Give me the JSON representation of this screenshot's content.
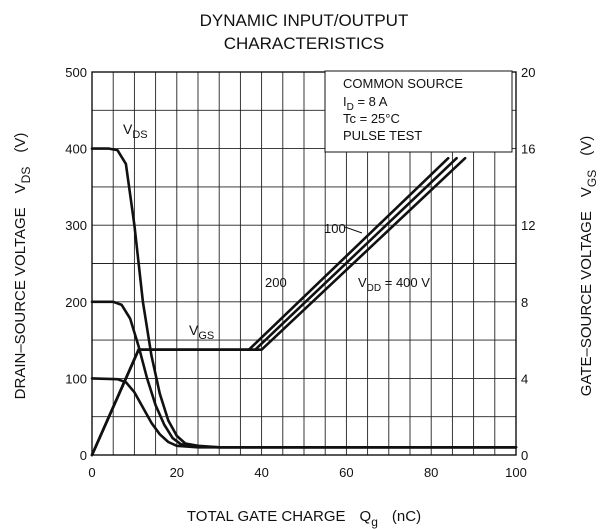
{
  "chart_data": {
    "type": "line",
    "title": "DYNAMIC INPUT/OUTPUT",
    "subtitle": "CHARACTERISTICS",
    "xlabel": {
      "main": "TOTAL GATE CHARGE",
      "sym": "Q",
      "sub": "g",
      "unit": "(nC)"
    },
    "ylabel_left": {
      "main": "DRAIN–SOURCE VOLTAGE",
      "sym": "V",
      "sub": "DS",
      "unit": "(V)"
    },
    "ylabel_right": {
      "main": "GATE–SOURCE VOLTAGE",
      "sym": "V",
      "sub": "GS",
      "unit": "(V)"
    },
    "xlim": [
      0,
      100
    ],
    "ylim_left": [
      0,
      500
    ],
    "ylim_right": [
      0,
      20
    ],
    "x_ticks": [
      "0",
      "20",
      "40",
      "60",
      "80",
      "100"
    ],
    "y_ticks_left": [
      "0",
      "100",
      "200",
      "300",
      "400",
      "500"
    ],
    "y_ticks_right": [
      "0",
      "4",
      "8",
      "12",
      "16",
      "20"
    ],
    "grid": true,
    "conditions": [
      {
        "text": "COMMON SOURCE"
      },
      {
        "pre": "I",
        "sub": "D",
        "post": " = 8 A"
      },
      {
        "text": "Tc = 25°C"
      },
      {
        "text": "PULSE TEST"
      }
    ],
    "annotations": {
      "vds": {
        "sym": "V",
        "sub": "DS"
      },
      "vgs": {
        "sym": "V",
        "sub": "GS"
      },
      "vdd": {
        "sym": "V",
        "sub": "DD",
        "post": " = 400 V"
      },
      "l200": "200",
      "l100": "100"
    },
    "series": [
      {
        "axis": "left",
        "x": [
          0,
          4,
          6,
          8,
          10,
          12,
          14,
          16,
          18,
          20,
          22,
          25,
          30,
          50,
          100
        ],
        "y": [
          400,
          400,
          398,
          380,
          300,
          200,
          130,
          80,
          45,
          25,
          15,
          12,
          10,
          10,
          10
        ]
      },
      {
        "axis": "left",
        "x": [
          0,
          5,
          7,
          9,
          11,
          13,
          15,
          17,
          19,
          21,
          25,
          30,
          50,
          100
        ],
        "y": [
          200,
          200,
          196,
          178,
          142,
          100,
          65,
          40,
          22,
          14,
          11,
          10,
          10,
          10
        ]
      },
      {
        "axis": "left",
        "x": [
          0,
          6,
          8,
          10,
          12,
          14,
          16,
          18,
          20,
          25,
          30,
          50,
          100
        ],
        "y": [
          100,
          99,
          95,
          82,
          62,
          42,
          27,
          17,
          12,
          10,
          10,
          10,
          10
        ]
      },
      {
        "axis": "right",
        "x": [
          0,
          11,
          37,
          84
        ],
        "y": [
          0,
          5.5,
          5.5,
          15.5
        ]
      },
      {
        "axis": "right",
        "x": [
          0,
          11,
          38.5,
          86
        ],
        "y": [
          0,
          5.5,
          5.5,
          15.5
        ]
      },
      {
        "axis": "right",
        "x": [
          0,
          11,
          40,
          88
        ],
        "y": [
          0,
          5.5,
          5.5,
          15.5
        ]
      }
    ]
  }
}
